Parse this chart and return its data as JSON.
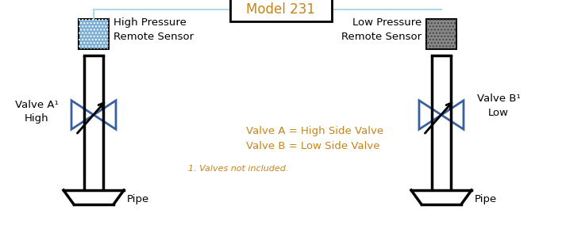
{
  "title": "Model 231",
  "bg_color": "#ffffff",
  "pipe_color": "#000000",
  "line_color": "#ADD8E6",
  "valve_color": "#3A5FA0",
  "text_color_orange": "#C8841A",
  "text_color_black": "#000000",
  "sensor_blue_facecolor": "#7BAFD4",
  "sensor_gray_facecolor": "#888888",
  "annotation_valve_a": "Valve A¹\nHigh",
  "annotation_valve_b": "Valve B¹\nLow",
  "label_high_sensor": "High Pressure\nRemote Sensor",
  "label_low_sensor": "Low Pressure\nRemote Sensor",
  "label_pipe_left": "Pipe",
  "label_pipe_right": "Pipe",
  "legend_line1": "Valve A = High Side Valve",
  "legend_line2": "Valve B = Low Side Valve",
  "footnote": "1. Valves not included."
}
